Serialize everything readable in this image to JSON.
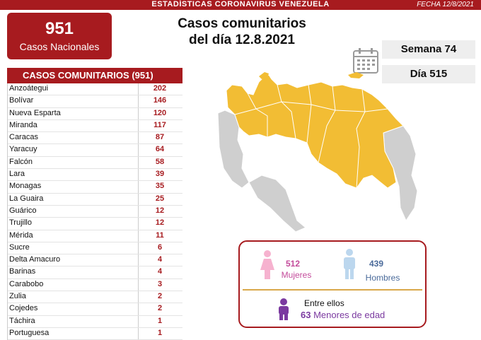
{
  "header": {
    "title": "ESTADÍSTICAS CORONAVIRUS VENEZUELA",
    "date": "FECHA 12/8/2021"
  },
  "national": {
    "count": "951",
    "label": "Casos Nacionales"
  },
  "main_title": {
    "line1": "Casos comunitarios",
    "line2": "del día 12.8.2021"
  },
  "calendar": {
    "week": "Semana 74",
    "day": "Día 515"
  },
  "table": {
    "heading": "CASOS COMUNITARIOS (951)",
    "rows": [
      {
        "state": "Anzoátegui",
        "cases": "202"
      },
      {
        "state": "Bolívar",
        "cases": "146"
      },
      {
        "state": "Nueva Esparta",
        "cases": "120"
      },
      {
        "state": "Miranda",
        "cases": "117"
      },
      {
        "state": "Caracas",
        "cases": "87"
      },
      {
        "state": "Yaracuy",
        "cases": "64"
      },
      {
        "state": "Falcón",
        "cases": "58"
      },
      {
        "state": "Lara",
        "cases": "39"
      },
      {
        "state": "Monagas",
        "cases": "35"
      },
      {
        "state": "La Guaira",
        "cases": "25"
      },
      {
        "state": "Guárico",
        "cases": "12"
      },
      {
        "state": "Trujillo",
        "cases": "12"
      },
      {
        "state": "Mérida",
        "cases": "11"
      },
      {
        "state": "Sucre",
        "cases": "6"
      },
      {
        "state": "Delta Amacuro",
        "cases": "4"
      },
      {
        "state": "Barinas",
        "cases": "4"
      },
      {
        "state": "Carabobo",
        "cases": "3"
      },
      {
        "state": "Zulia",
        "cases": "2"
      },
      {
        "state": "Cojedes",
        "cases": "2"
      },
      {
        "state": "Táchira",
        "cases": "1"
      },
      {
        "state": "Portuguesa",
        "cases": "1"
      }
    ]
  },
  "stats": {
    "women_count": "512",
    "women_label": "Mujeres",
    "men_count": "439",
    "men_label": "Hombres",
    "between_label": "Entre ellos",
    "minors_count": "63",
    "minors_label": "Menores de edad"
  },
  "colors": {
    "brand_red": "#a71b1f",
    "map_affected": "#f2bd34",
    "map_other": "#cfcfcf",
    "women": "#c44b9b",
    "men": "#4a6a9a",
    "minors": "#7b3aa0"
  },
  "icons": {
    "calendar": "calendar-icon",
    "woman": "woman-icon",
    "man": "man-icon",
    "child": "child-icon"
  }
}
